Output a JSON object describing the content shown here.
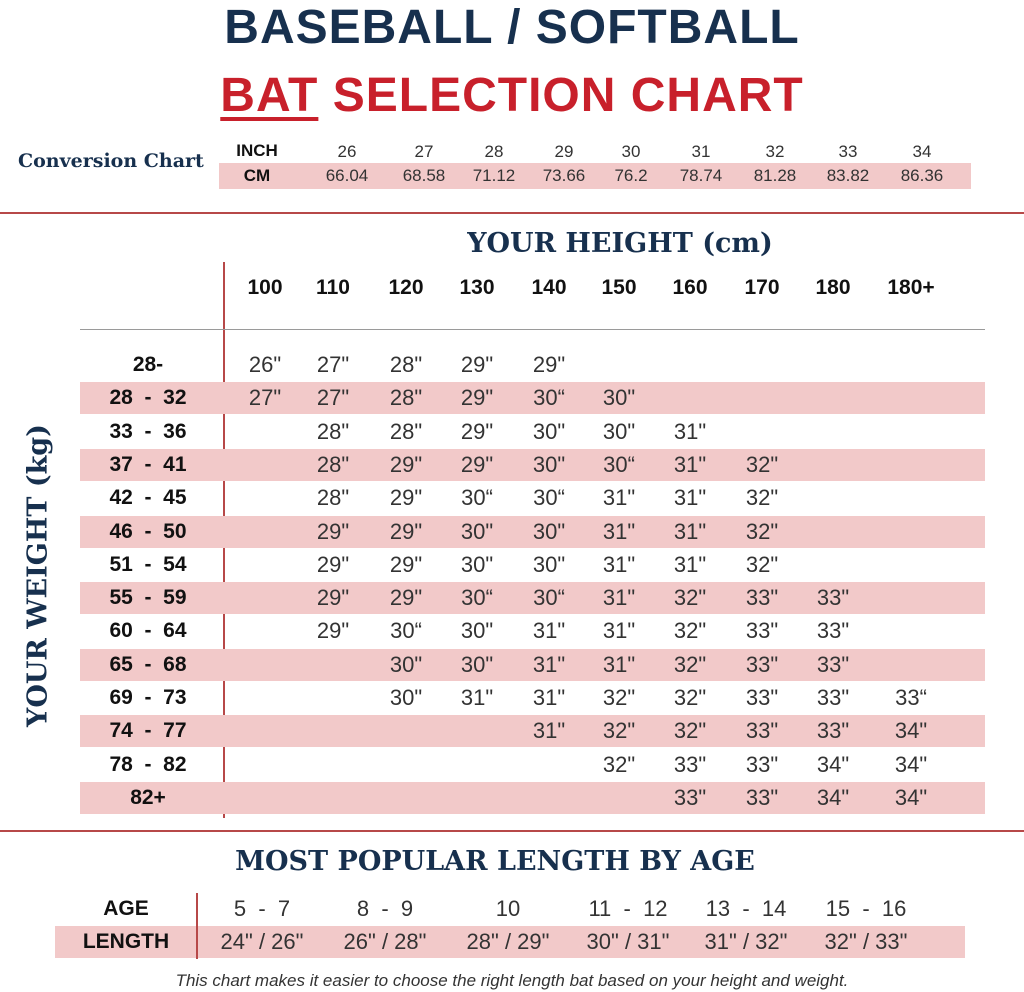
{
  "header": {
    "title_line1": "BASEBALL / SOFTBALL",
    "title_line2_part1": "BAT",
    "title_line2_part2": " SELECTION CHART"
  },
  "conversion": {
    "title": "Conversion Chart",
    "inch_label": "INCH",
    "cm_label": "CM",
    "inch": [
      "26",
      "27",
      "28",
      "29",
      "30",
      "31",
      "32",
      "33",
      "34"
    ],
    "cm": [
      "66.04",
      "68.58",
      "71.12",
      "73.66",
      "76.2",
      "78.74",
      "81.28",
      "83.82",
      "86.36"
    ]
  },
  "height_table": {
    "col_title": "YOUR HEIGHT (cm)",
    "row_title": "YOUR WEIGHT (kg)",
    "heights": [
      "100",
      "110",
      "120",
      "130",
      "140",
      "150",
      "160",
      "170",
      "180",
      "180+"
    ],
    "rows": [
      {
        "weight": "28-",
        "values": [
          "26\"",
          "27\"",
          "28\"",
          "29\"",
          "29\"",
          "",
          "",
          "",
          "",
          ""
        ]
      },
      {
        "weight": "28  -  32",
        "values": [
          "27\"",
          "27\"",
          "28\"",
          "29\"",
          "30“",
          "30\"",
          "",
          "",
          "",
          ""
        ]
      },
      {
        "weight": "33  -  36",
        "values": [
          "",
          "28\"",
          "28\"",
          "29\"",
          "30\"",
          "30\"",
          "31\"",
          "",
          "",
          ""
        ]
      },
      {
        "weight": "37  -  41",
        "values": [
          "",
          "28\"",
          "29\"",
          "29\"",
          "30\"",
          "30“",
          "31\"",
          "32\"",
          "",
          ""
        ]
      },
      {
        "weight": "42  -  45",
        "values": [
          "",
          "28\"",
          "29\"",
          "30“",
          "30“",
          "31\"",
          "31\"",
          "32\"",
          "",
          ""
        ]
      },
      {
        "weight": "46  -  50",
        "values": [
          "",
          "29\"",
          "29\"",
          "30\"",
          "30\"",
          "31\"",
          "31\"",
          "32\"",
          "",
          ""
        ]
      },
      {
        "weight": "51  -  54",
        "values": [
          "",
          "29\"",
          "29\"",
          "30\"",
          "30\"",
          "31\"",
          "31\"",
          "32\"",
          "",
          ""
        ]
      },
      {
        "weight": "55  -  59",
        "values": [
          "",
          "29\"",
          "29\"",
          "30“",
          "30“",
          "31\"",
          "32\"",
          "33\"",
          "33\"",
          ""
        ]
      },
      {
        "weight": "60  -  64",
        "values": [
          "",
          "29\"",
          "30“",
          "30\"",
          "31\"",
          "31\"",
          "32\"",
          "33\"",
          "33\"",
          ""
        ]
      },
      {
        "weight": "65  -  68",
        "values": [
          "",
          "",
          "30\"",
          "30\"",
          "31\"",
          "31\"",
          "32\"",
          "33\"",
          "33\"",
          ""
        ]
      },
      {
        "weight": "69  -  73",
        "values": [
          "",
          "",
          "30\"",
          "31\"",
          "31\"",
          "32\"",
          "32\"",
          "33\"",
          "33\"",
          "33“"
        ]
      },
      {
        "weight": "74  -  77",
        "values": [
          "",
          "",
          "",
          "",
          "31\"",
          "32\"",
          "32\"",
          "33\"",
          "33\"",
          "34\""
        ]
      },
      {
        "weight": "78  -  82",
        "values": [
          "",
          "",
          "",
          "",
          "",
          "32\"",
          "33\"",
          "33\"",
          "34\"",
          "34\""
        ]
      },
      {
        "weight": "82+",
        "values": [
          "",
          "",
          "",
          "",
          "",
          "",
          "33\"",
          "33\"",
          "34\"",
          "34\""
        ]
      }
    ]
  },
  "age_table": {
    "title": "MOST POPULAR LENGTH BY AGE",
    "age_label": "AGE",
    "length_label": "LENGTH",
    "ages": [
      "5  -  7",
      "8  -  9",
      "10",
      "11  -  12",
      "13  -  14",
      "15  -  16"
    ],
    "lengths": [
      "24\" / 26\"",
      "26\" / 28\"",
      "28\" / 29\"",
      "30\" / 31\"",
      "31\" / 32\"",
      "32\" / 33\""
    ]
  },
  "footnote": "This chart makes it easier to choose the right length bat based on your height and weight.",
  "colors": {
    "navy": "#17304e",
    "red": "#c8202b",
    "band": "#f2c9c9",
    "rule": "#b74848"
  }
}
